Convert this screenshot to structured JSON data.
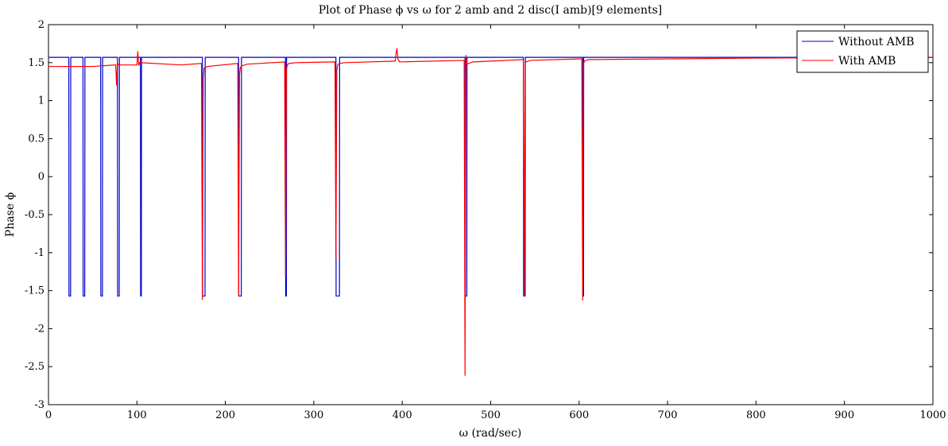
{
  "chart_data": {
    "type": "line",
    "title": "Plot of Phase ϕ vs ω for 2 amb and 2 disc(I amb)[9 elements]",
    "xlabel": "ω (rad/sec)",
    "ylabel": "Phase ϕ",
    "xlim": [
      0,
      1000
    ],
    "ylim": [
      -3,
      2
    ],
    "xticks": [
      0,
      100,
      200,
      300,
      400,
      500,
      600,
      700,
      800,
      900,
      1000
    ],
    "yticks": [
      -3,
      -2.5,
      -2,
      -1.5,
      -1,
      -0.5,
      0,
      0.5,
      1,
      1.5,
      2
    ],
    "xtick_labels": [
      "0",
      "100",
      "200",
      "300",
      "400",
      "500",
      "600",
      "700",
      "800",
      "900",
      "1000"
    ],
    "ytick_labels": [
      "-3",
      "-2.5",
      "-2",
      "-1.5",
      "-1",
      "-0.5",
      "0",
      "0.5",
      "1",
      "1.5",
      "2"
    ],
    "grid": false,
    "legend_position": "top-right",
    "series": [
      {
        "name": "Without AMB",
        "color": "#0000cc",
        "x": [
          0,
          23,
          23.2,
          25,
          25.2,
          39,
          39.2,
          41,
          41.2,
          59,
          59.2,
          61,
          61.2,
          78,
          78.2,
          80,
          80.2,
          104,
          104.2,
          105,
          105.2,
          174,
          174.2,
          177,
          177.2,
          215,
          215.2,
          218,
          218.2,
          268,
          268.2,
          269,
          269.2,
          325,
          325.2,
          329,
          329.2,
          471,
          471.2,
          473,
          473.2,
          537,
          537.2,
          539,
          539.2,
          604,
          604.2,
          605,
          605.2,
          1000
        ],
        "y": [
          1.57,
          1.57,
          -1.57,
          -1.57,
          1.57,
          1.57,
          -1.57,
          -1.57,
          1.57,
          1.57,
          -1.57,
          -1.57,
          1.57,
          1.57,
          -1.57,
          -1.57,
          1.57,
          1.57,
          -1.57,
          -1.57,
          1.57,
          1.57,
          -1.57,
          -1.57,
          1.57,
          1.57,
          -1.57,
          -1.57,
          1.57,
          1.57,
          -1.57,
          -1.57,
          1.57,
          1.57,
          -1.57,
          -1.57,
          1.57,
          1.57,
          -1.57,
          -1.57,
          1.57,
          1.57,
          -1.57,
          -1.57,
          1.57,
          1.57,
          -1.57,
          -1.57,
          1.57,
          1.57
        ]
      },
      {
        "name": "With AMB",
        "color": "#ff0000",
        "x": [
          0,
          50,
          76,
          77,
          78,
          79,
          80,
          100,
          101,
          102,
          103,
          150,
          173,
          174,
          175,
          176,
          180,
          214,
          215,
          216,
          217,
          219,
          225,
          267,
          268,
          269,
          270,
          272,
          280,
          324,
          325,
          326,
          327,
          329,
          335,
          392,
          393,
          394,
          395,
          397,
          470,
          471,
          472,
          473,
          480,
          537,
          538,
          539,
          540,
          545,
          603,
          604,
          605,
          606,
          610,
          800,
          1000
        ],
        "y": [
          1.45,
          1.45,
          1.47,
          1.2,
          1.5,
          1.47,
          1.47,
          1.47,
          1.65,
          1.46,
          1.5,
          1.47,
          1.49,
          -1.62,
          1.3,
          1.43,
          1.45,
          1.49,
          -1.57,
          1.35,
          1.44,
          1.46,
          1.48,
          1.51,
          -1.3,
          1.4,
          1.47,
          1.49,
          1.5,
          1.51,
          -1.1,
          1.4,
          1.47,
          1.49,
          1.5,
          1.52,
          1.62,
          1.69,
          1.55,
          1.51,
          1.53,
          -2.62,
          1.6,
          1.48,
          1.51,
          1.54,
          -1.57,
          1.48,
          1.51,
          1.53,
          1.55,
          -1.63,
          1.49,
          1.52,
          1.54,
          1.56,
          1.57
        ]
      }
    ]
  }
}
